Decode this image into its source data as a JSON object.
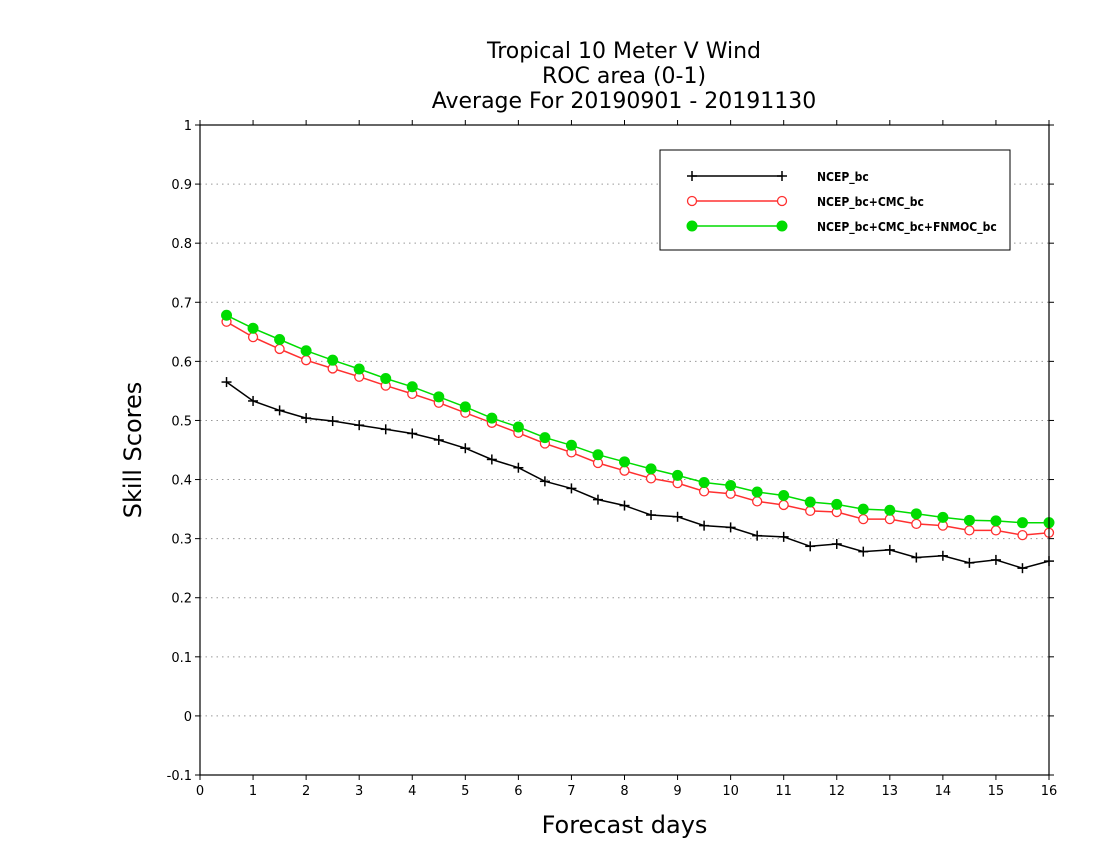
{
  "chart_data": {
    "type": "line",
    "title": [
      "Tropical 10 Meter V Wind",
      "ROC area (0-1)",
      "Average For 20190901 - 20191130"
    ],
    "xlabel": "Forecast days",
    "ylabel": "Skill Scores",
    "xlim": [
      0,
      16
    ],
    "ylim": [
      -0.1,
      1
    ],
    "xticks": [
      0,
      1,
      2,
      3,
      4,
      5,
      6,
      7,
      8,
      9,
      10,
      11,
      12,
      13,
      14,
      15,
      16
    ],
    "xtick_labels": [
      "0",
      "1",
      "2",
      "3",
      "4",
      "5",
      "6",
      "7",
      "8",
      "9",
      "10",
      "11",
      "12",
      "13",
      "14",
      "15",
      "16"
    ],
    "yticks": [
      -0.1,
      0,
      0.1,
      0.2,
      0.3,
      0.4,
      0.5,
      0.6,
      0.7,
      0.8,
      0.9,
      1
    ],
    "ytick_labels": [
      "-0.1",
      "0",
      "0.1",
      "0.2",
      "0.3",
      "0.4",
      "0.5",
      "0.6",
      "0.7",
      "0.8",
      "0.9",
      "1"
    ],
    "grid": "horizontal-dotted",
    "legend_position": "top-right",
    "x": [
      0.5,
      1,
      1.5,
      2,
      2.5,
      3,
      3.5,
      4,
      4.5,
      5,
      5.5,
      6,
      6.5,
      7,
      7.5,
      8,
      8.5,
      9,
      9.5,
      10,
      10.5,
      11,
      11.5,
      12,
      12.5,
      13,
      13.5,
      14,
      14.5,
      15,
      15.5,
      16
    ],
    "series": [
      {
        "name": "NCEP_bc",
        "color": "#000000",
        "marker": "plus",
        "values": [
          0.565,
          0.533,
          0.517,
          0.504,
          0.499,
          0.492,
          0.485,
          0.478,
          0.467,
          0.453,
          0.434,
          0.42,
          0.397,
          0.385,
          0.366,
          0.356,
          0.34,
          0.337,
          0.322,
          0.319,
          0.305,
          0.303,
          0.287,
          0.291,
          0.278,
          0.281,
          0.268,
          0.271,
          0.259,
          0.264,
          0.25,
          0.262
        ]
      },
      {
        "name": "NCEP_bc+CMC_bc",
        "color": "#ff3030",
        "marker": "open-circle",
        "values": [
          0.667,
          0.641,
          0.621,
          0.602,
          0.588,
          0.574,
          0.559,
          0.545,
          0.53,
          0.513,
          0.496,
          0.479,
          0.461,
          0.446,
          0.428,
          0.415,
          0.402,
          0.394,
          0.38,
          0.376,
          0.363,
          0.357,
          0.347,
          0.345,
          0.333,
          0.333,
          0.325,
          0.322,
          0.314,
          0.314,
          0.306,
          0.31
        ]
      },
      {
        "name": "NCEP_bc+CMC_bc+FNMOC_bc",
        "color": "#00dc00",
        "marker": "filled-circle",
        "values": [
          0.678,
          0.656,
          0.637,
          0.618,
          0.602,
          0.587,
          0.571,
          0.557,
          0.54,
          0.523,
          0.504,
          0.489,
          0.471,
          0.458,
          0.442,
          0.43,
          0.418,
          0.407,
          0.395,
          0.39,
          0.379,
          0.373,
          0.362,
          0.358,
          0.35,
          0.348,
          0.342,
          0.336,
          0.331,
          0.33,
          0.327,
          0.327
        ]
      }
    ]
  }
}
